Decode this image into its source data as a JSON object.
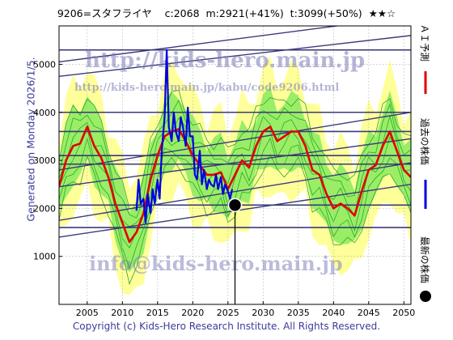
{
  "header": {
    "code_name": "9206=スタフライヤ",
    "current": "c:2068",
    "mean": "m:2921(+41%)",
    "target": "t:3099(+50%)",
    "rating": "★★☆"
  },
  "side_label": "Generated on Monday 2026/1/5.",
  "footer": "Copyright (c) Kids-Hero Research Institute. All Rights Reserved.",
  "watermarks": {
    "url1": "http://kids-hero.main.jp",
    "url2": "http://kids-hero.main.jp/kabu/code9206.html",
    "email": "info@kids-hero.main.jp"
  },
  "legend": {
    "forecast": "ＡＩ予測",
    "past": "過去の株価",
    "latest": "最新の株価"
  },
  "colors": {
    "forecast": "#e00000",
    "past": "#0000e0",
    "latest": "#000000",
    "band_outer": "#ffff99",
    "band_inner": "#99ee66",
    "trend": "#3a3a7a"
  },
  "chart_data": {
    "type": "line",
    "xlim": [
      2001,
      2051
    ],
    "ylim": [
      0,
      5800
    ],
    "xticks": [
      2005,
      2010,
      2015,
      2020,
      2025,
      2030,
      2035,
      2040,
      2045,
      2050
    ],
    "yticks": [
      1000,
      2000,
      3000,
      4000,
      5000
    ],
    "grid": true,
    "series": [
      {
        "name": "ＡＩ予測",
        "x": [
          2001,
          2002,
          2003,
          2004,
          2005,
          2006,
          2007,
          2008,
          2009,
          2010,
          2011,
          2012,
          2013,
          2014,
          2015,
          2016,
          2017,
          2018,
          2019,
          2020,
          2021,
          2022,
          2023,
          2024,
          2025,
          2026,
          2027,
          2028,
          2029,
          2030,
          2031,
          2032,
          2033,
          2034,
          2035,
          2036,
          2037,
          2038,
          2039,
          2040,
          2041,
          2042,
          2043,
          2044,
          2045,
          2046,
          2047,
          2048,
          2049,
          2050,
          2051
        ],
        "y": [
          2450,
          3000,
          3300,
          3350,
          3700,
          3300,
          3050,
          2650,
          2100,
          1700,
          1300,
          1500,
          1900,
          2600,
          3100,
          3500,
          3600,
          3650,
          3400,
          3100,
          2900,
          2700,
          2700,
          2750,
          2400,
          2700,
          3000,
          2850,
          3300,
          3600,
          3700,
          3400,
          3500,
          3600,
          3600,
          3300,
          2800,
          2700,
          2300,
          2000,
          2100,
          2000,
          1850,
          2350,
          2800,
          2900,
          3300,
          3600,
          3200,
          2800,
          2650
        ]
      },
      {
        "name": "過去の株価",
        "x": [
          2012.0,
          2012.3,
          2012.6,
          2013.0,
          2013.3,
          2013.6,
          2014.0,
          2014.3,
          2014.6,
          2015.0,
          2015.3,
          2015.6,
          2016.0,
          2016.3,
          2016.6,
          2017.0,
          2017.3,
          2017.6,
          2018.0,
          2018.3,
          2018.6,
          2019.0,
          2019.3,
          2019.6,
          2020.0,
          2020.3,
          2020.6,
          2021.0,
          2021.3,
          2021.6,
          2022.0,
          2022.3,
          2022.6,
          2023.0,
          2023.3,
          2023.6,
          2024.0,
          2024.3,
          2024.6,
          2025.0,
          2025.3,
          2025.6
        ],
        "y": [
          1950,
          2600,
          2100,
          2200,
          1700,
          2300,
          1900,
          2400,
          2100,
          2600,
          2200,
          3200,
          3900,
          5300,
          3700,
          3400,
          4000,
          3600,
          3400,
          3900,
          3700,
          3300,
          4100,
          3500,
          3500,
          2700,
          2600,
          3200,
          2500,
          2800,
          2400,
          2600,
          2500,
          2450,
          2700,
          2400,
          2650,
          2300,
          2500,
          2350,
          2200,
          2400
        ]
      }
    ],
    "latest": {
      "x": 2026.0,
      "y": 2068
    },
    "horizontal_levels": [
      5300,
      4000,
      3600,
      3099,
      2921,
      2068,
      1600
    ]
  }
}
